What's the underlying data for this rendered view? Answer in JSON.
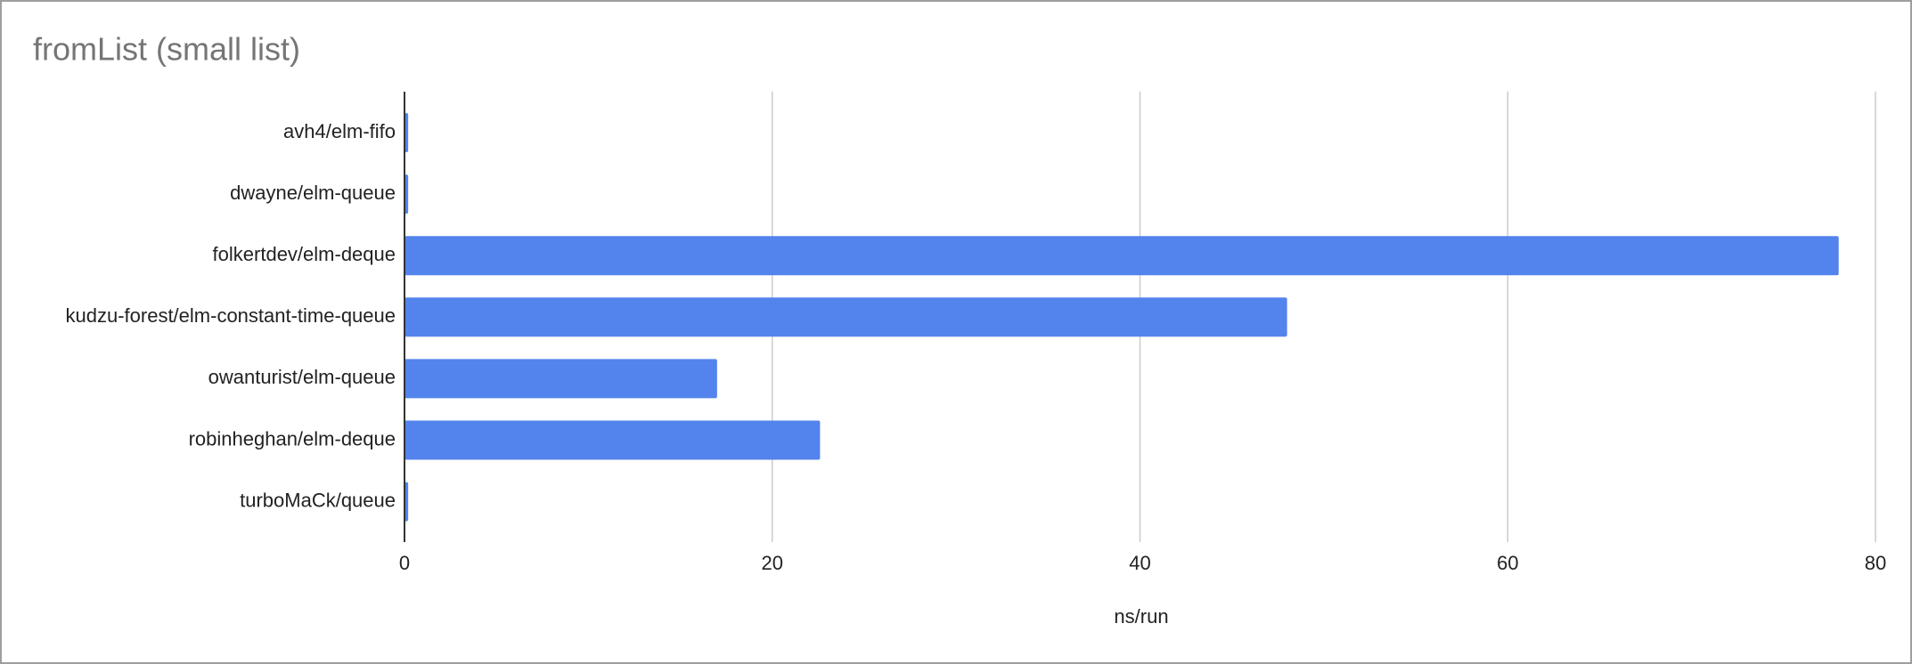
{
  "chart_data": {
    "type": "bar",
    "orientation": "horizontal",
    "title": "fromList (small list)",
    "x_label": "ns/run",
    "categories": [
      "avh4/elm-fifo",
      "dwayne/elm-queue",
      "folkertdev/elm-deque",
      "kudzu-forest/elm-constant-time-queue",
      "owanturist/elm-queue",
      "robinheghan/elm-deque",
      "turboMaCk/queue"
    ],
    "values": [
      0.2,
      0.2,
      78,
      48,
      17,
      22.6,
      0.2
    ],
    "color": "#5383ec",
    "xlim": [
      0,
      80
    ],
    "xticks": [
      0,
      20,
      40,
      60,
      80
    ],
    "grid": true
  }
}
